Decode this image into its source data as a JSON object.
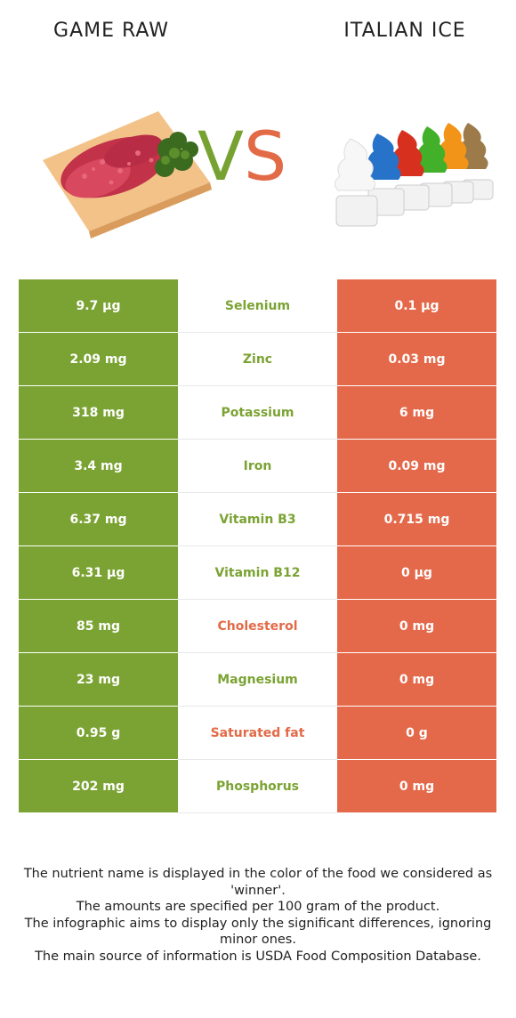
{
  "header": {
    "left_title": "GAME RAW",
    "right_title": "ITALIAN ICE",
    "vs_v": "V",
    "vs_s": "S"
  },
  "colors": {
    "left_winner": "#7ba333",
    "right_winner": "#e4694a"
  },
  "rows": [
    {
      "left": "9.7 µg",
      "nutrient": "Selenium",
      "right": "0.1 µg",
      "winner": "left"
    },
    {
      "left": "2.09 mg",
      "nutrient": "Zinc",
      "right": "0.03 mg",
      "winner": "left"
    },
    {
      "left": "318 mg",
      "nutrient": "Potassium",
      "right": "6 mg",
      "winner": "left"
    },
    {
      "left": "3.4 mg",
      "nutrient": "Iron",
      "right": "0.09 mg",
      "winner": "left"
    },
    {
      "left": "6.37 mg",
      "nutrient": "Vitamin B3",
      "right": "0.715 mg",
      "winner": "left"
    },
    {
      "left": "6.31 µg",
      "nutrient": "Vitamin B12",
      "right": "0 µg",
      "winner": "left"
    },
    {
      "left": "85 mg",
      "nutrient": "Cholesterol",
      "right": "0 mg",
      "winner": "right"
    },
    {
      "left": "23 mg",
      "nutrient": "Magnesium",
      "right": "0 mg",
      "winner": "left"
    },
    {
      "left": "0.95 g",
      "nutrient": "Saturated fat",
      "right": "0 g",
      "winner": "right"
    },
    {
      "left": "202 mg",
      "nutrient": "Phosphorus",
      "right": "0 mg",
      "winner": "left"
    }
  ],
  "footer": {
    "line1": "The nutrient name is displayed in the color of the food we considered as 'winner'.",
    "line2": "The amounts are specified per 100 gram of the product.",
    "line3": "The infographic aims to display only the significant differences, ignoring minor ones.",
    "line4": "The main source of information is USDA Food Composition Database."
  }
}
